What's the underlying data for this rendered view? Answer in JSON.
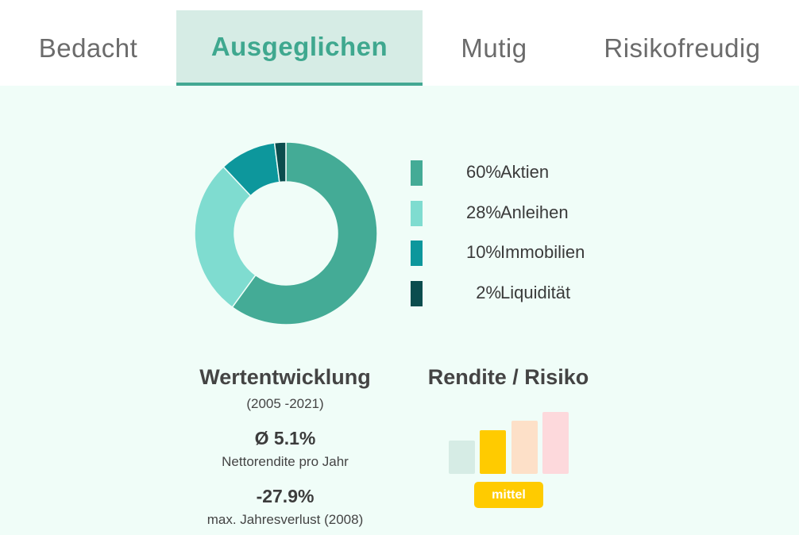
{
  "tabs": [
    {
      "label": "Bedacht",
      "active": false
    },
    {
      "label": "Ausgeglichen",
      "active": true
    },
    {
      "label": "Mutig",
      "active": false
    },
    {
      "label": "Risikofreudig",
      "active": false
    }
  ],
  "allocation": [
    {
      "pct": "60%",
      "label": "Aktien",
      "value": 60,
      "color": "#44ab96"
    },
    {
      "pct": "28%",
      "label": "Anleihen",
      "value": 28,
      "color": "#7fdcd0"
    },
    {
      "pct": "10%",
      "label": "Immobilien",
      "value": 10,
      "color": "#0d979c"
    },
    {
      "pct": "2%",
      "label": "Liquidität",
      "value": 2,
      "color": "#0b4d4e"
    }
  ],
  "performance": {
    "title": "Wertentwicklung",
    "range": "(2005 -2021)",
    "avg_value": "Ø 5.1%",
    "avg_label": "Nettorendite pro Jahr",
    "loss_value": "-27.9%",
    "loss_label": "max. Jahresverlust (2008)"
  },
  "risk": {
    "title": "Rendite / Risiko",
    "level_label": "mittel",
    "level": 2,
    "level_count": 4,
    "bar_colors": [
      "#d6ece5",
      "#ffcb00",
      "#fde0c8",
      "#fdd9dc"
    ],
    "badge_color": "#ffcb00"
  }
}
